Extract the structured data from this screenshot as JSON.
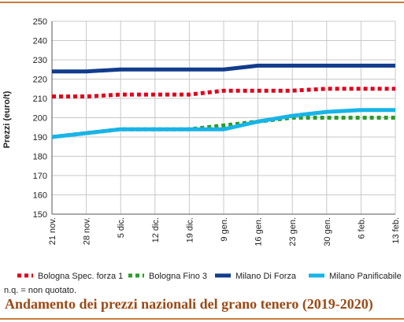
{
  "chart_data": {
    "type": "line",
    "title": "Andamento dei prezzi nazionali del grano tenero (2019-2020)",
    "ylabel": "Prezzi (euro/t)",
    "xlabel": "",
    "ylim": [
      150,
      250
    ],
    "yticks": [
      150,
      160,
      170,
      180,
      190,
      200,
      210,
      220,
      230,
      240,
      250
    ],
    "grid": true,
    "legend_position": "bottom",
    "categories": [
      "21 nov.",
      "28 nov.",
      "5 dic.",
      "12 dic.",
      "19 dic.",
      "9 gen.",
      "16 gen.",
      "23 gen.",
      "30 gen.",
      "6 feb.",
      "13 feb."
    ],
    "series": [
      {
        "name": "Bologna Spec. forza 1",
        "color": "#e0001b",
        "style": "dotted",
        "values": [
          211,
          211,
          212,
          212,
          212,
          214,
          214,
          214,
          215,
          215,
          215
        ]
      },
      {
        "name": "Bologna Fino 3",
        "color": "#2a9d2a",
        "style": "dotted",
        "values": [
          190,
          192,
          194,
          194,
          194,
          196,
          198,
          200,
          200,
          200,
          200
        ]
      },
      {
        "name": "Milano Di Forza",
        "color": "#123c8c",
        "style": "solid",
        "values": [
          224,
          224,
          225,
          225,
          225,
          225,
          227,
          227,
          227,
          227,
          227
        ]
      },
      {
        "name": "Milano Panificabile",
        "color": "#18b4e8",
        "style": "solid",
        "values": [
          190,
          192,
          194,
          194,
          194,
          194,
          198,
          201,
          203,
          204,
          204
        ]
      }
    ]
  },
  "note": "n.q. = non quotato."
}
